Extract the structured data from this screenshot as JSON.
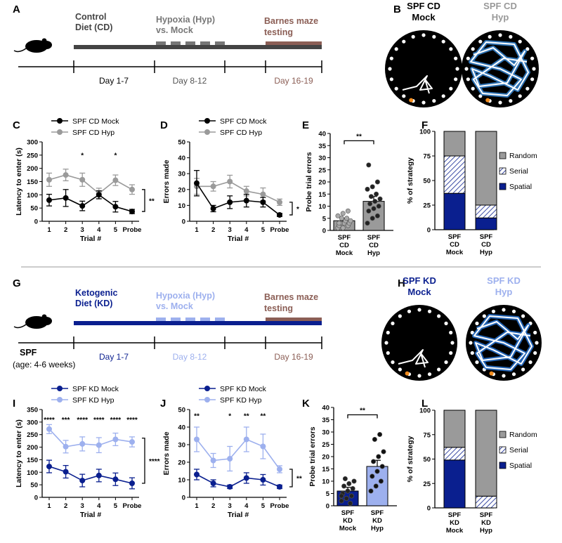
{
  "colors": {
    "cd_mock": "#000000",
    "cd_hyp": "#9a9a9a",
    "kd_mock": "#0a1f8f",
    "kd_hyp": "#9db0ee",
    "barnes": "#8b5e55",
    "random": "#9a9a9a",
    "spatial": "#0a1f8f",
    "cd_bar_mock": "#9a9a9a",
    "cd_bar_hyp": "#9a9a9a",
    "kd_bar_mock": "#0a1f8f",
    "kd_bar_hyp": "#9db0ee"
  },
  "panel_labels": {
    "A": "A",
    "B": "B",
    "C": "C",
    "D": "D",
    "E": "E",
    "F": "F",
    "G": "G",
    "H": "H",
    "I": "I",
    "J": "J",
    "K": "K",
    "L": "L"
  },
  "timeline_cd": {
    "diet": "Control\nDiet (CD)",
    "hypoxia": "Hypoxia (Hyp)\nvs. Mock",
    "barnes": "Barnes maze\ntesting",
    "day1": "Day 1-7",
    "day2": "Day 8-12",
    "day3": "Day 16-19"
  },
  "timeline_kd": {
    "diet": "Ketogenic\nDiet (KD)",
    "hypoxia": "Hypoxia (Hyp)\nvs. Mock",
    "barnes": "Barnes maze\ntesting",
    "day1": "Day 1-7",
    "day2": "Day 8-12",
    "day3": "Day 16-19",
    "spf": "SPF",
    "age": "(age: 4-6 weeks)"
  },
  "maze_cd": {
    "mock": "SPF CD\nMock",
    "hyp": "SPF CD\nHyp"
  },
  "maze_kd": {
    "mock": "SPF KD\nMock",
    "hyp": "SPF KD\nHyp"
  },
  "chart_data": [
    {
      "panel": "C",
      "type": "line",
      "ylabel": "Latency to enter (s)",
      "xlabel": "Trial #",
      "categories": [
        "1",
        "2",
        "3",
        "4",
        "5",
        "Probe"
      ],
      "ylim": [
        0,
        300
      ],
      "yticks": [
        0,
        50,
        100,
        150,
        200,
        250,
        300
      ],
      "series": [
        {
          "name": "SPF CD Mock",
          "values": [
            80,
            88,
            58,
            100,
            55,
            37
          ],
          "errors": [
            22,
            32,
            18,
            15,
            20,
            8
          ]
        },
        {
          "name": "SPF CD Hyp",
          "values": [
            157,
            175,
            157,
            105,
            155,
            120
          ],
          "errors": [
            25,
            22,
            25,
            20,
            20,
            18
          ]
        }
      ],
      "trial_stars": [
        "",
        "",
        "*",
        "",
        "*",
        ""
      ],
      "bracket_sig": "**"
    },
    {
      "panel": "D",
      "type": "line",
      "ylabel": "Errors made",
      "xlabel": "Trial #",
      "categories": [
        "1",
        "2",
        "3",
        "4",
        "5",
        "Probe"
      ],
      "ylim": [
        0,
        50
      ],
      "yticks": [
        0,
        10,
        20,
        30,
        40,
        50
      ],
      "series": [
        {
          "name": "SPF CD Mock",
          "values": [
            24,
            8,
            12,
            13,
            12,
            4
          ],
          "errors": [
            8,
            2,
            4,
            4,
            3,
            1
          ]
        },
        {
          "name": "SPF CD Hyp",
          "values": [
            22,
            22,
            25,
            19,
            17,
            12
          ],
          "errors": [
            5,
            3,
            4,
            3,
            4,
            2
          ]
        }
      ],
      "bracket_sig": "*"
    },
    {
      "panel": "E",
      "type": "bar",
      "ylabel": "Probe trial errors",
      "categories": [
        "SPF\nCD\nMock",
        "SPF\nCD\nHyp"
      ],
      "ylim": [
        0,
        40
      ],
      "yticks": [
        0,
        5,
        10,
        15,
        20,
        25,
        30,
        35,
        40
      ],
      "values": [
        4,
        12
      ],
      "errors": [
        1,
        2
      ],
      "points": [
        [
          1,
          1,
          2,
          2,
          3,
          3,
          3,
          4,
          4,
          5,
          5,
          6,
          7,
          8,
          3
        ],
        [
          3,
          5,
          6,
          8,
          9,
          10,
          11,
          12,
          13,
          14,
          15,
          17,
          18,
          20,
          27
        ]
      ],
      "sig": "**"
    },
    {
      "panel": "F",
      "type": "bar",
      "ylabel": "% of strategy",
      "categories": [
        "SPF\nCD\nMock",
        "SPF\nCD\nHyp"
      ],
      "ylim": [
        0,
        100
      ],
      "yticks": [
        0,
        25,
        50,
        75,
        100
      ],
      "stacks": [
        {
          "name": "Spatial",
          "values": [
            37,
            12
          ]
        },
        {
          "name": "Serial",
          "values": [
            38,
            13
          ]
        },
        {
          "name": "Random",
          "values": [
            25,
            75
          ]
        }
      ],
      "legend": [
        "Random",
        "Serial",
        "Spatial"
      ]
    },
    {
      "panel": "I",
      "type": "line",
      "ylabel": "Latency to enter (s)",
      "xlabel": "Trial #",
      "categories": [
        "1",
        "2",
        "3",
        "4",
        "5",
        "Probe"
      ],
      "ylim": [
        0,
        350
      ],
      "yticks": [
        0,
        50,
        100,
        150,
        200,
        250,
        300,
        350
      ],
      "series": [
        {
          "name": "SPF KD Mock",
          "values": [
            123,
            102,
            67,
            87,
            72,
            56
          ],
          "errors": [
            25,
            25,
            25,
            25,
            25,
            22
          ]
        },
        {
          "name": "SPF KD Hyp",
          "values": [
            272,
            202,
            213,
            208,
            231,
            221
          ],
          "errors": [
            18,
            25,
            28,
            30,
            25,
            20
          ]
        }
      ],
      "trial_stars": [
        "****",
        "***",
        "****",
        "****",
        "****",
        "****"
      ],
      "bracket_sig": "****"
    },
    {
      "panel": "J",
      "type": "line",
      "ylabel": "Errors made",
      "xlabel": "Trial #",
      "categories": [
        "1",
        "2",
        "3",
        "4",
        "5",
        "Probe"
      ],
      "ylim": [
        0,
        50
      ],
      "yticks": [
        0,
        10,
        20,
        30,
        40,
        50
      ],
      "series": [
        {
          "name": "SPF KD Mock",
          "values": [
            13,
            8,
            6,
            11,
            10,
            6
          ],
          "errors": [
            3,
            2,
            1,
            3,
            3,
            1
          ]
        },
        {
          "name": "SPF KD Hyp",
          "values": [
            33,
            21,
            22,
            33,
            29,
            16
          ],
          "errors": [
            7,
            4,
            7,
            7,
            7,
            2
          ]
        }
      ],
      "trial_stars": [
        "**",
        "",
        "*",
        "**",
        "**",
        ""
      ],
      "bracket_sig": "**"
    },
    {
      "panel": "K",
      "type": "bar",
      "ylabel": "Probe trial errors",
      "categories": [
        "SPF\nKD\nMock",
        "SPF\nKD\nHyp"
      ],
      "ylim": [
        0,
        40
      ],
      "yticks": [
        0,
        5,
        10,
        15,
        20,
        25,
        30,
        35,
        40
      ],
      "values": [
        6,
        16
      ],
      "errors": [
        1.5,
        2.5
      ],
      "points": [
        [
          2,
          3,
          4,
          5,
          6,
          7,
          8,
          9,
          10,
          11,
          1,
          4
        ],
        [
          6,
          8,
          10,
          12,
          14,
          16,
          18,
          20,
          22,
          27,
          29
        ]
      ],
      "sig": "**"
    },
    {
      "panel": "L",
      "type": "bar",
      "ylabel": "% of strategy",
      "categories": [
        "SPF\nKD\nMock",
        "SPF\nKD\nHyp"
      ],
      "ylim": [
        0,
        100
      ],
      "yticks": [
        0,
        25,
        50,
        75,
        100
      ],
      "stacks": [
        {
          "name": "Spatial",
          "values": [
            49,
            0
          ]
        },
        {
          "name": "Serial",
          "values": [
            13,
            12
          ]
        },
        {
          "name": "Random",
          "values": [
            38,
            88
          ]
        }
      ],
      "legend": [
        "Random",
        "Serial",
        "Spatial"
      ]
    }
  ]
}
